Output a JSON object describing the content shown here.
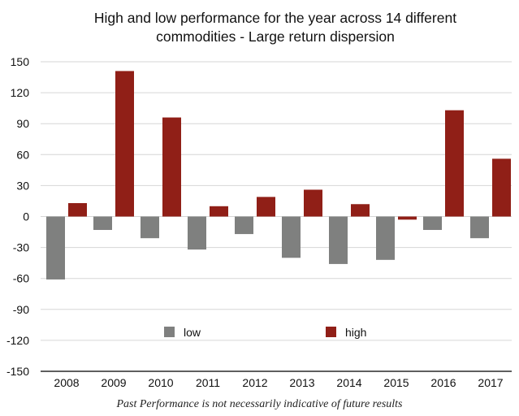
{
  "chart_data": {
    "type": "bar",
    "title_lines": [
      "High and low performance for the year across 14 different",
      "commodities - Large return dispersion"
    ],
    "categories": [
      "2008",
      "2009",
      "2010",
      "2011",
      "2012",
      "2013",
      "2014",
      "2015",
      "2016",
      "2017"
    ],
    "series": [
      {
        "name": "low",
        "color": "#7f807f",
        "values": [
          -61,
          -13,
          -21,
          -32,
          -17,
          -40,
          -46,
          -42,
          -13,
          -21
        ]
      },
      {
        "name": "high",
        "color": "#901f17",
        "values": [
          13,
          141,
          96,
          10,
          19,
          26,
          12,
          -3,
          103,
          56
        ]
      }
    ],
    "ylim": [
      -150,
      150
    ],
    "yticks": [
      150,
      120,
      90,
      60,
      30,
      0,
      -30,
      -60,
      -90,
      -120,
      -150
    ],
    "grid": true,
    "legend": "inside lower-center"
  },
  "footnote": "Past Performance is not necessarily indicative of future results"
}
